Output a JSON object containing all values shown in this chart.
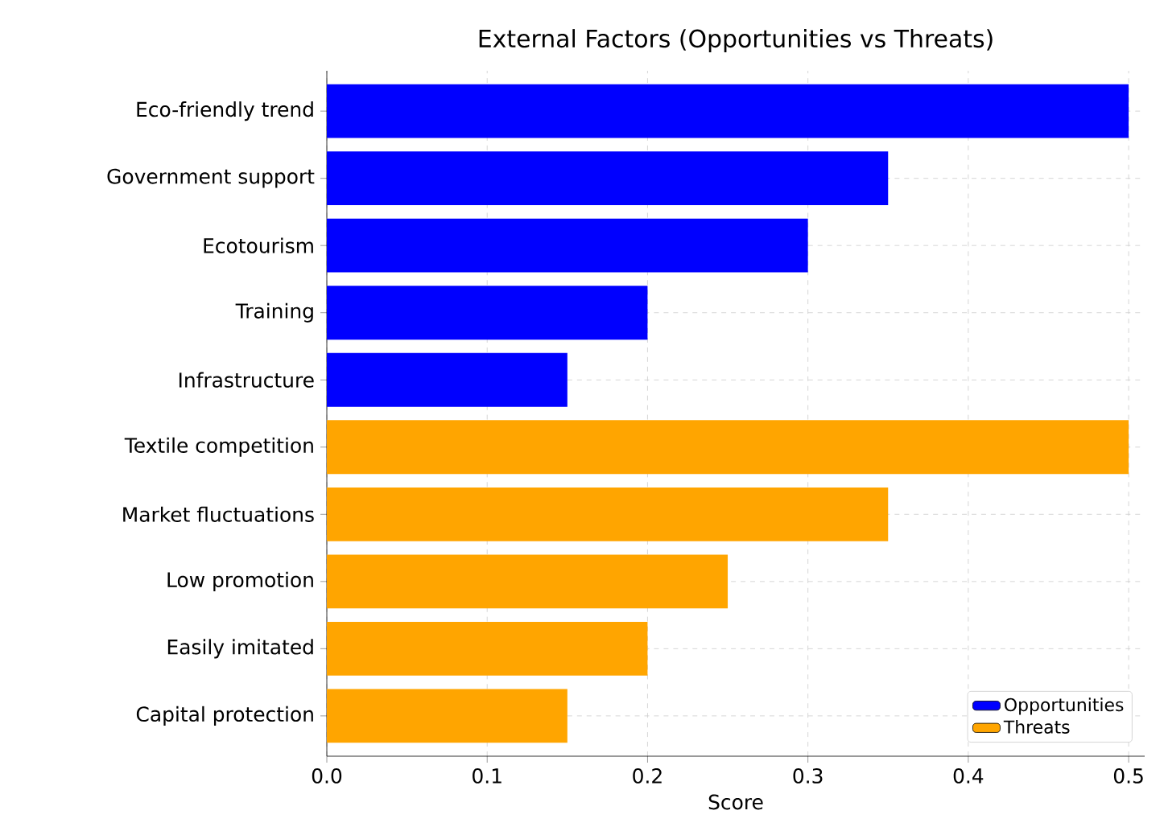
{
  "chart_data": {
    "type": "bar",
    "orientation": "horizontal",
    "title": "External Factors (Opportunities vs Threats)",
    "xlabel": "Score",
    "categories": [
      "Eco-friendly trend",
      "Government support",
      "Ecotourism",
      "Training",
      "Infrastructure",
      "Textile competition",
      "Market fluctuations",
      "Low promotion",
      "Easily imitated",
      "Capital protection"
    ],
    "series": [
      {
        "name": "Opportunities",
        "color": "#0000ff",
        "values": [
          0.5,
          0.35,
          0.3,
          0.2,
          0.15,
          null,
          null,
          null,
          null,
          null
        ]
      },
      {
        "name": "Threats",
        "color": "#ffa500",
        "values": [
          null,
          null,
          null,
          null,
          null,
          0.5,
          0.35,
          0.25,
          0.2,
          0.15
        ]
      }
    ],
    "xlim": [
      0,
      0.51
    ],
    "xticks": [
      {
        "value": 0,
        "label": "0.0"
      },
      0.1,
      0.2,
      0.3,
      0.4,
      0.5
    ],
    "grid": true,
    "legend": "bottom right"
  }
}
